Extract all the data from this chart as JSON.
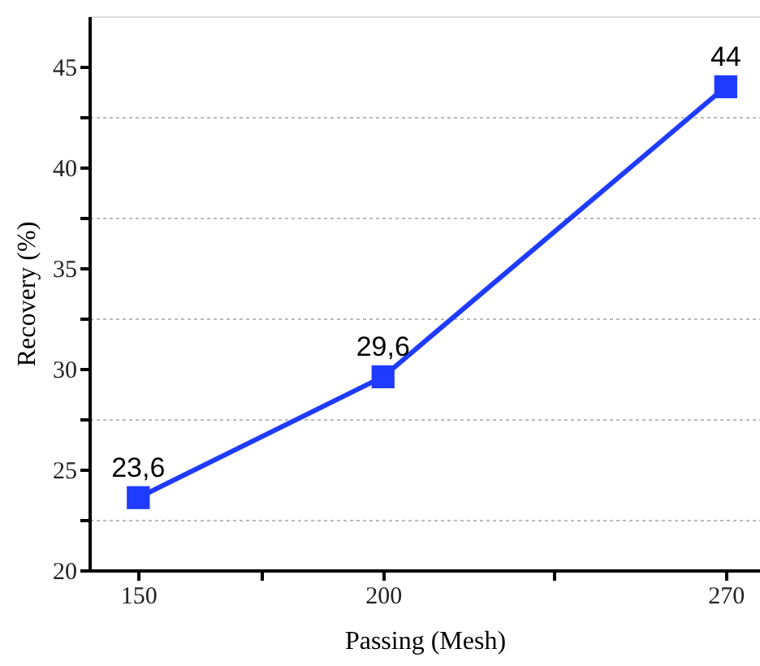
{
  "chart_data": {
    "type": "line",
    "xlabel": "Passing (Mesh)",
    "ylabel": "Recovery (%)",
    "x": [
      150,
      200,
      270
    ],
    "series": [
      {
        "color": "#1f3bff",
        "values": [
          23.6,
          29.6,
          44
        ],
        "value_labels": [
          "23,6",
          "29,6",
          "44"
        ]
      }
    ],
    "xlim": [
      140,
      277
    ],
    "xticks": [
      150,
      {
        "value": 175,
        "label": null
      },
      200,
      {
        "value": 235,
        "label": null
      },
      270
    ],
    "ylim": [
      20,
      47.5
    ],
    "yticks": [
      20,
      {
        "value": 22.5,
        "label": null
      },
      25,
      {
        "value": 27.5,
        "label": null
      },
      30,
      {
        "value": 32.5,
        "label": null
      },
      35,
      {
        "value": 37.5,
        "label": null
      },
      40,
      {
        "value": 42.5,
        "label": null
      },
      45
    ],
    "grid": "y",
    "marker": "square",
    "line_style": "solid"
  }
}
